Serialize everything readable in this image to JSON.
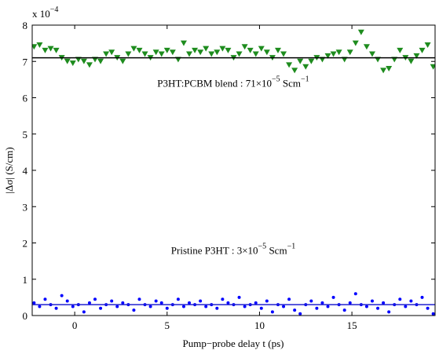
{
  "chart_data": {
    "type": "scatter",
    "xlabel": "Pump−probe delay t (ps)",
    "ylabel": "|Δσ| (S/cm)",
    "y_multiplier": {
      "text": "x 10",
      "sup": "−4"
    },
    "xlim": [
      -2.3,
      19.5
    ],
    "xticks": [
      0,
      5,
      10,
      15
    ],
    "ylim": [
      0,
      8
    ],
    "yticks": [
      0,
      1,
      2,
      3,
      4,
      5,
      6,
      7,
      8
    ],
    "x": [
      -2.2,
      -1.9,
      -1.6,
      -1.3,
      -1.0,
      -0.7,
      -0.4,
      -0.1,
      0.2,
      0.5,
      0.8,
      1.1,
      1.4,
      1.7,
      2.0,
      2.3,
      2.6,
      2.9,
      3.2,
      3.5,
      3.8,
      4.1,
      4.4,
      4.7,
      5.0,
      5.3,
      5.6,
      5.9,
      6.2,
      6.5,
      6.8,
      7.1,
      7.4,
      7.7,
      8.0,
      8.3,
      8.6,
      8.9,
      9.2,
      9.5,
      9.8,
      10.1,
      10.4,
      10.7,
      11.0,
      11.3,
      11.6,
      11.9,
      12.2,
      12.5,
      12.8,
      13.1,
      13.4,
      13.7,
      14.0,
      14.3,
      14.6,
      14.9,
      15.2,
      15.5,
      15.8,
      16.1,
      16.4,
      16.7,
      17.0,
      17.3,
      17.6,
      17.9,
      18.2,
      18.5,
      18.8,
      19.1,
      19.4
    ],
    "series": [
      {
        "color": "#1e8c1e",
        "marker": "triangle-down",
        "values": [
          7.4,
          7.45,
          7.3,
          7.35,
          7.3,
          7.1,
          7.0,
          6.95,
          7.05,
          7.0,
          6.9,
          7.05,
          7.0,
          7.2,
          7.25,
          7.1,
          7.0,
          7.2,
          7.35,
          7.3,
          7.2,
          7.1,
          7.25,
          7.2,
          7.3,
          7.25,
          7.05,
          7.5,
          7.2,
          7.3,
          7.25,
          7.35,
          7.2,
          7.25,
          7.35,
          7.3,
          7.1,
          7.2,
          7.4,
          7.3,
          7.2,
          7.35,
          7.25,
          7.1,
          7.3,
          7.2,
          6.9,
          6.75,
          7.0,
          6.85,
          7.0,
          7.1,
          7.05,
          7.15,
          7.2,
          7.25,
          7.05,
          7.25,
          7.5,
          7.8,
          7.4,
          7.2,
          7.05,
          6.75,
          6.8,
          7.05,
          7.3,
          7.1,
          7.0,
          7.15,
          7.3,
          7.45,
          6.85
        ]
      },
      {
        "color": "#0000ff",
        "marker": "dot",
        "values": [
          0.35,
          0.25,
          0.45,
          0.3,
          0.2,
          0.55,
          0.4,
          0.25,
          0.3,
          0.1,
          0.35,
          0.45,
          0.2,
          0.3,
          0.4,
          0.25,
          0.35,
          0.3,
          0.15,
          0.45,
          0.3,
          0.25,
          0.4,
          0.35,
          0.2,
          0.3,
          0.45,
          0.25,
          0.35,
          0.3,
          0.4,
          0.25,
          0.3,
          0.2,
          0.45,
          0.35,
          0.3,
          0.5,
          0.25,
          0.3,
          0.35,
          0.2,
          0.4,
          0.1,
          0.3,
          0.25,
          0.45,
          0.15,
          0.05,
          0.3,
          0.4,
          0.2,
          0.35,
          0.25,
          0.5,
          0.3,
          0.15,
          0.35,
          0.6,
          0.3,
          0.25,
          0.4,
          0.2,
          0.35,
          0.1,
          0.3,
          0.45,
          0.25,
          0.4,
          0.3,
          0.5,
          0.2,
          0.05
        ]
      }
    ],
    "fit_lines": [
      {
        "value": 7.1,
        "color": "#000000"
      },
      {
        "value": 0.3,
        "color": "#2020d0"
      }
    ],
    "annotations": [
      {
        "text": "P3HT:PCBM blend : 71×10",
        "sup": "−5",
        "text2": " Scm",
        "sup2": "−1",
        "y": 6.3
      },
      {
        "text": "Pristine P3HT : 3×10",
        "sup": "−5",
        "text2": " Scm",
        "sup2": "−1",
        "y": 1.7
      }
    ]
  }
}
